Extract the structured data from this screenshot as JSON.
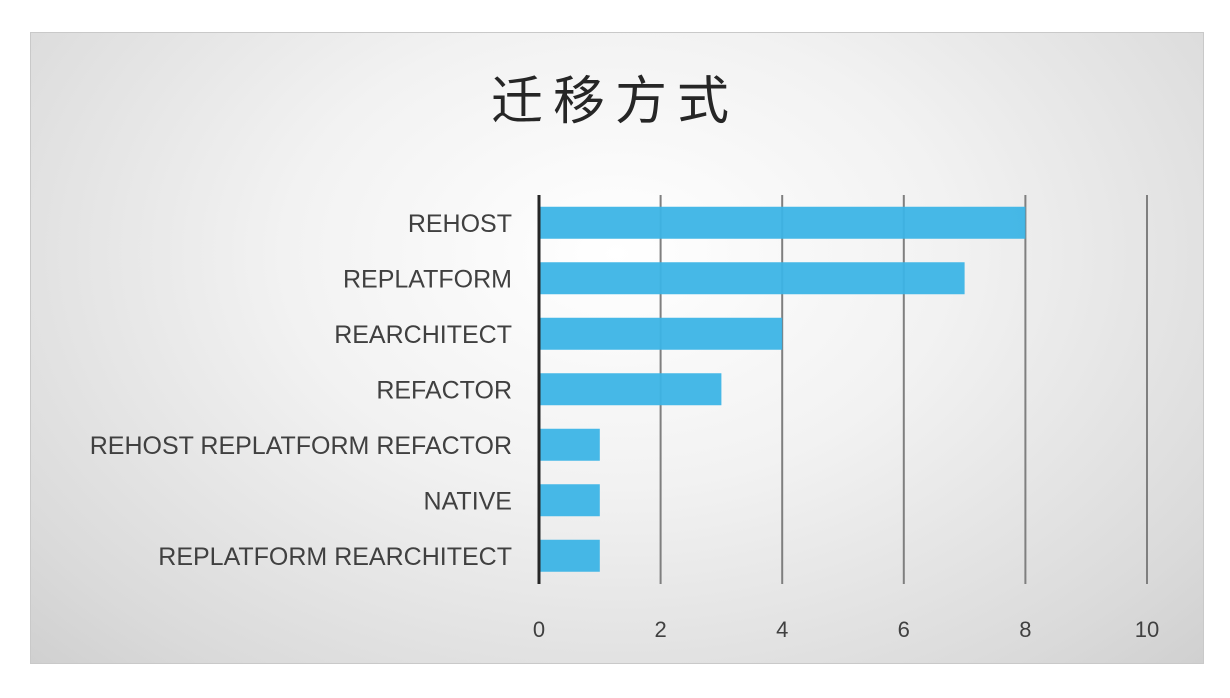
{
  "chart_data": {
    "type": "bar",
    "orientation": "horizontal",
    "title": "迁移方式",
    "categories": [
      "REHOST",
      "REPLATFORM",
      "REARCHITECT",
      "REFACTOR",
      "REHOST REPLATFORM REFACTOR",
      "NATIVE",
      "REPLATFORM REARCHITECT"
    ],
    "values": [
      8,
      7,
      4,
      3,
      1,
      1,
      1
    ],
    "xlim": [
      0,
      10
    ],
    "xticks": [
      "0",
      "2",
      "4",
      "6",
      "8",
      "10"
    ],
    "xlabel": "",
    "ylabel": "",
    "grid": true,
    "legend": "none",
    "colors": {
      "bar": "#3cb4e6",
      "grid": "#7f7f7f",
      "axis": "#262626",
      "text": "#404040"
    }
  }
}
